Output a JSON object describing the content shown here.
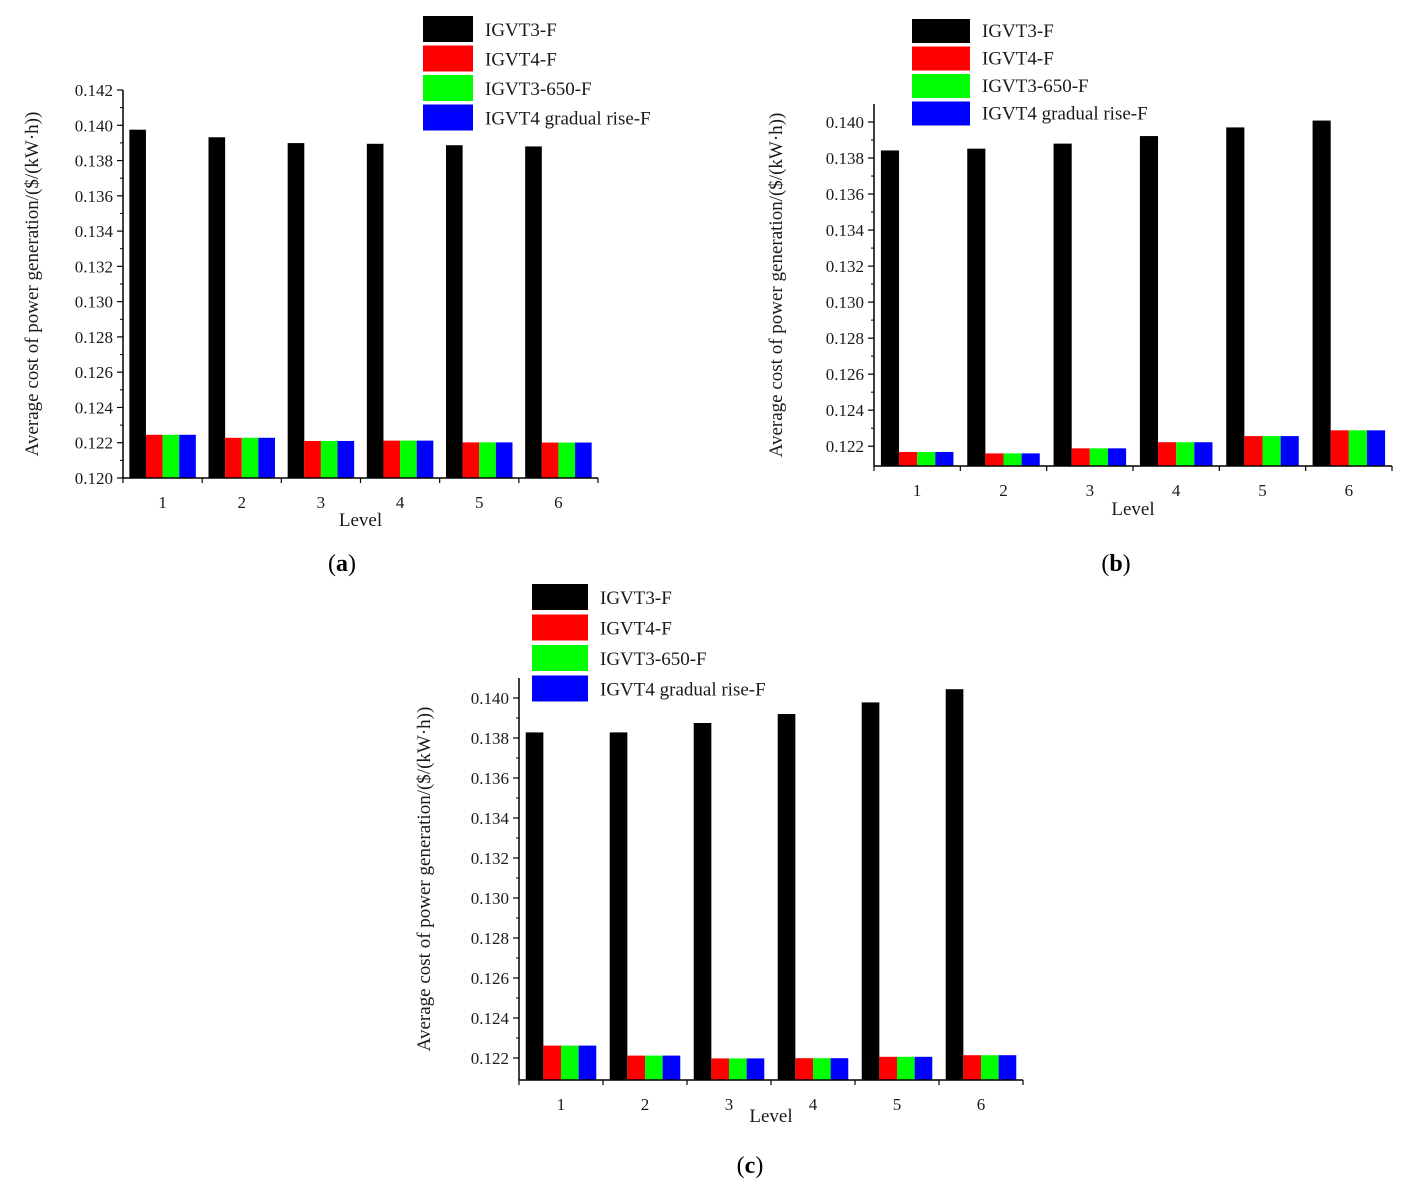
{
  "colors": {
    "IGVT3-F": "#000000",
    "IGVT4-F": "#ff0000",
    "IGVT3-650-F": "#00ff00",
    "IGVT4 gradual rise-F": "#0000ff"
  },
  "panel_labels": [
    {
      "open": "(",
      "letter": "a",
      "close": ")"
    },
    {
      "open": "(",
      "letter": "b",
      "close": ")"
    },
    {
      "open": "(",
      "letter": "c",
      "close": ")"
    }
  ],
  "chart_data": [
    {
      "type": "bar",
      "xlabel": "Level",
      "ylabel": "Average cost of power generation/($/(kW·h))",
      "categories": [
        "1",
        "2",
        "3",
        "4",
        "5",
        "6"
      ],
      "ylim": [
        0.12,
        0.142
      ],
      "yticks": [
        0.12,
        0.122,
        0.124,
        0.126,
        0.128,
        0.13,
        0.132,
        0.134,
        0.136,
        0.138,
        0.14,
        0.142
      ],
      "ytick_labels": [
        "0.120",
        "0.122",
        "0.124",
        "0.126",
        "0.128",
        "0.130",
        "0.132",
        "0.134",
        "0.136",
        "0.138",
        "0.140",
        "0.142"
      ],
      "legend": "top-right",
      "series": [
        {
          "name": "IGVT3-F",
          "values": [
            0.13975,
            0.13932,
            0.13899,
            0.13895,
            0.13887,
            0.1388
          ]
        },
        {
          "name": "IGVT4-F",
          "values": [
            0.12245,
            0.12228,
            0.1221,
            0.12212,
            0.12202,
            0.12201
          ]
        },
        {
          "name": "IGVT3-650-F",
          "values": [
            0.12245,
            0.12228,
            0.1221,
            0.12212,
            0.12202,
            0.12201
          ]
        },
        {
          "name": "IGVT4 gradual rise-F",
          "values": [
            0.12245,
            0.12228,
            0.1221,
            0.12212,
            0.12202,
            0.12201
          ]
        }
      ]
    },
    {
      "type": "bar",
      "xlabel": "Level",
      "ylabel": "Average cost of power generation/($/(kW·h))",
      "categories": [
        "1",
        "2",
        "3",
        "4",
        "5",
        "6"
      ],
      "ylim": [
        0.1209,
        0.141
      ],
      "yticks": [
        0.122,
        0.124,
        0.126,
        0.128,
        0.13,
        0.132,
        0.134,
        0.136,
        0.138,
        0.14
      ],
      "ytick_labels": [
        "0.122",
        "0.124",
        "0.126",
        "0.128",
        "0.130",
        "0.132",
        "0.134",
        "0.136",
        "0.138",
        "0.140"
      ],
      "legend": "top-right",
      "series": [
        {
          "name": "IGVT3-F",
          "values": [
            0.13842,
            0.13852,
            0.1388,
            0.13922,
            0.1397,
            0.14008
          ]
        },
        {
          "name": "IGVT4-F",
          "values": [
            0.12168,
            0.1216,
            0.12188,
            0.12222,
            0.12256,
            0.12288
          ]
        },
        {
          "name": "IGVT3-650-F",
          "values": [
            0.12168,
            0.1216,
            0.12188,
            0.12222,
            0.12256,
            0.12288
          ]
        },
        {
          "name": "IGVT4 gradual rise-F",
          "values": [
            0.12168,
            0.1216,
            0.12188,
            0.12222,
            0.12256,
            0.12288
          ]
        }
      ]
    },
    {
      "type": "bar",
      "xlabel": "Level",
      "ylabel": "Average cost of power generation/($/(kW·h))",
      "categories": [
        "1",
        "2",
        "3",
        "4",
        "5",
        "6"
      ],
      "ylim": [
        0.1209,
        0.141
      ],
      "yticks": [
        0.122,
        0.124,
        0.126,
        0.128,
        0.13,
        0.132,
        0.134,
        0.136,
        0.138,
        0.14
      ],
      "ytick_labels": [
        "0.122",
        "0.124",
        "0.126",
        "0.128",
        "0.130",
        "0.132",
        "0.134",
        "0.136",
        "0.138",
        "0.140"
      ],
      "legend": "top-right",
      "series": [
        {
          "name": "IGVT3-F",
          "values": [
            0.13828,
            0.13828,
            0.13875,
            0.1392,
            0.13978,
            0.14044
          ]
        },
        {
          "name": "IGVT4-F",
          "values": [
            0.12262,
            0.12212,
            0.12198,
            0.12199,
            0.12206,
            0.12214
          ]
        },
        {
          "name": "IGVT3-650-F",
          "values": [
            0.12262,
            0.12212,
            0.12198,
            0.12199,
            0.12206,
            0.12214
          ]
        },
        {
          "name": "IGVT4 gradual rise-F",
          "values": [
            0.12262,
            0.12212,
            0.12198,
            0.12199,
            0.12206,
            0.12214
          ]
        }
      ]
    }
  ]
}
